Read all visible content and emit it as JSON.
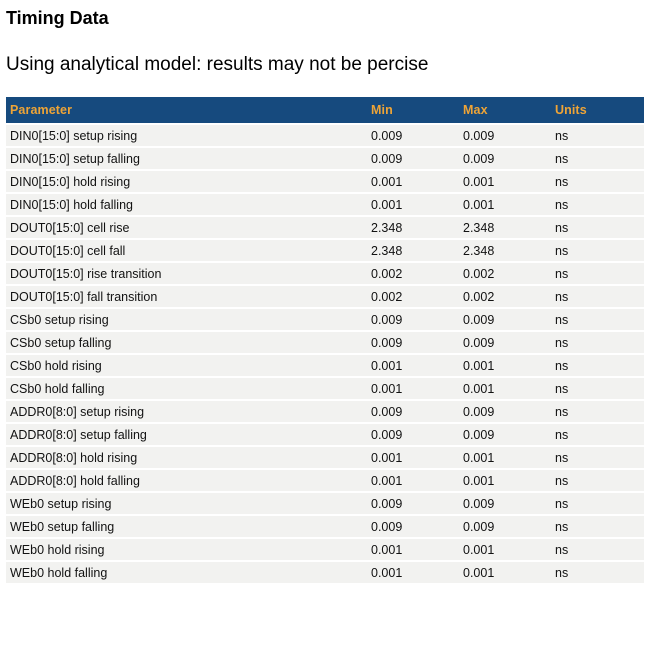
{
  "page": {
    "title": "Timing Data",
    "subtitle": "Using analytical model: results may not be percise"
  },
  "table": {
    "columns": [
      "Parameter",
      "Min",
      "Max",
      "Units"
    ],
    "rows": [
      {
        "parameter": "DIN0[15:0] setup rising",
        "min": "0.009",
        "max": "0.009",
        "units": "ns"
      },
      {
        "parameter": "DIN0[15:0] setup falling",
        "min": "0.009",
        "max": "0.009",
        "units": "ns"
      },
      {
        "parameter": "DIN0[15:0] hold rising",
        "min": "0.001",
        "max": "0.001",
        "units": "ns"
      },
      {
        "parameter": "DIN0[15:0] hold falling",
        "min": "0.001",
        "max": "0.001",
        "units": "ns"
      },
      {
        "parameter": "DOUT0[15:0] cell rise",
        "min": "2.348",
        "max": "2.348",
        "units": "ns"
      },
      {
        "parameter": "DOUT0[15:0] cell fall",
        "min": "2.348",
        "max": "2.348",
        "units": "ns"
      },
      {
        "parameter": "DOUT0[15:0] rise transition",
        "min": "0.002",
        "max": "0.002",
        "units": "ns"
      },
      {
        "parameter": "DOUT0[15:0] fall transition",
        "min": "0.002",
        "max": "0.002",
        "units": "ns"
      },
      {
        "parameter": "CSb0 setup rising",
        "min": "0.009",
        "max": "0.009",
        "units": "ns"
      },
      {
        "parameter": "CSb0 setup falling",
        "min": "0.009",
        "max": "0.009",
        "units": "ns"
      },
      {
        "parameter": "CSb0 hold rising",
        "min": "0.001",
        "max": "0.001",
        "units": "ns"
      },
      {
        "parameter": "CSb0 hold falling",
        "min": "0.001",
        "max": "0.001",
        "units": "ns"
      },
      {
        "parameter": "ADDR0[8:0] setup rising",
        "min": "0.009",
        "max": "0.009",
        "units": "ns"
      },
      {
        "parameter": "ADDR0[8:0] setup falling",
        "min": "0.009",
        "max": "0.009",
        "units": "ns"
      },
      {
        "parameter": "ADDR0[8:0] hold rising",
        "min": "0.001",
        "max": "0.001",
        "units": "ns"
      },
      {
        "parameter": "ADDR0[8:0] hold falling",
        "min": "0.001",
        "max": "0.001",
        "units": "ns"
      },
      {
        "parameter": "WEb0 setup rising",
        "min": "0.009",
        "max": "0.009",
        "units": "ns"
      },
      {
        "parameter": "WEb0 setup falling",
        "min": "0.009",
        "max": "0.009",
        "units": "ns"
      },
      {
        "parameter": "WEb0 hold rising",
        "min": "0.001",
        "max": "0.001",
        "units": "ns"
      },
      {
        "parameter": "WEb0 hold falling",
        "min": "0.001",
        "max": "0.001",
        "units": "ns"
      }
    ]
  },
  "colors": {
    "header_bg": "#164A7E",
    "header_text": "#EEA437",
    "row_bg": "#F2F2F0",
    "row_text": "#121212",
    "page_bg": "#FFFFFF"
  }
}
